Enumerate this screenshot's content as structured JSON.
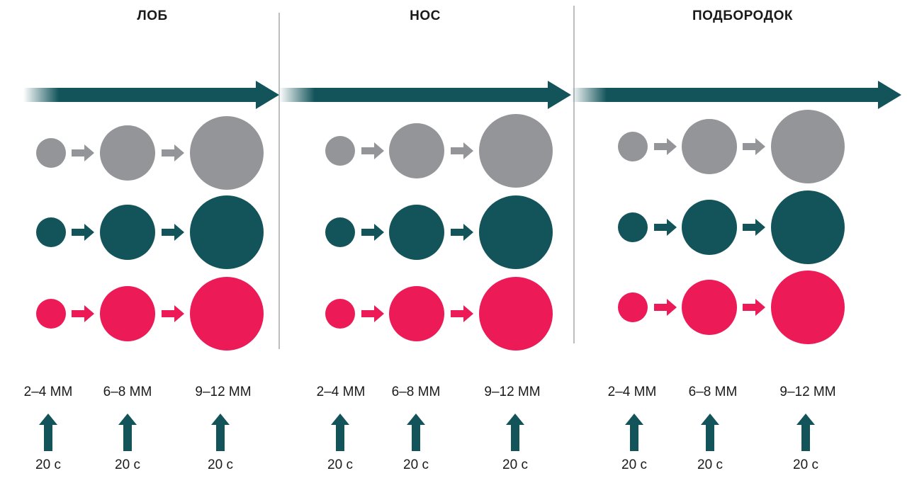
{
  "colors": {
    "teal": "#12545a",
    "gray": "#939598",
    "pink": "#ec1a57",
    "divider": "#bcbec0"
  },
  "zones": [
    {
      "title": "ЛОБ",
      "sizes": [
        "2–4 ММ",
        "6–8 ММ",
        "9–12 ММ"
      ],
      "times": [
        "20 с",
        "20 с",
        "20 с"
      ]
    },
    {
      "title": "НОС",
      "sizes": [
        "2–4 ММ",
        "6–8 ММ",
        "9–12 ММ"
      ],
      "times": [
        "20 с",
        "20 с",
        "20 с"
      ]
    },
    {
      "title": "ПОДБОРОДОК",
      "sizes": [
        "2–4 ММ",
        "6–8 ММ",
        "9–12 ММ"
      ],
      "times": [
        "20 с",
        "20 с",
        "20 с"
      ]
    }
  ]
}
